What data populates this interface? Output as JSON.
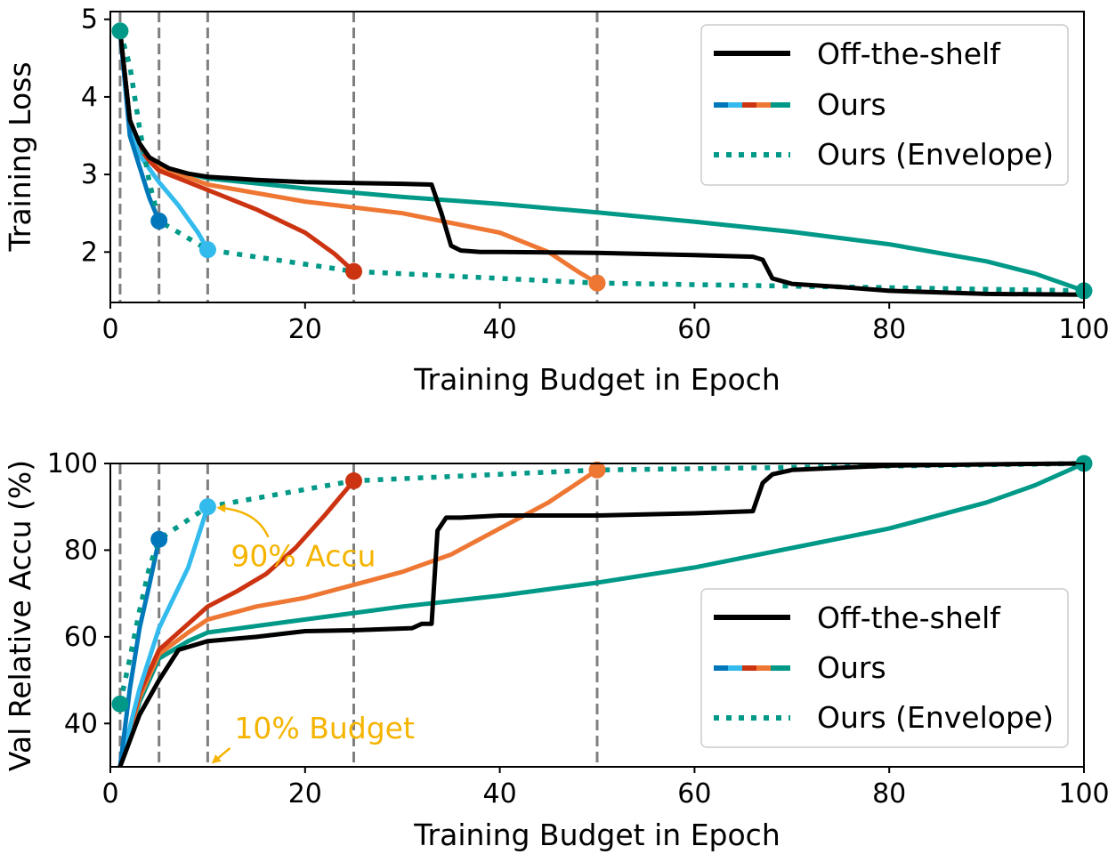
{
  "colors": {
    "off_the_shelf": "#000000",
    "b1": "#009988",
    "b5": "#0077bb",
    "b10": "#33bbee",
    "b25": "#cc3311",
    "b50": "#ee7733",
    "b100": "#009988",
    "envelope": "#009988",
    "annotation": "#f5b400",
    "vline": "#7f7f7f"
  },
  "legend": {
    "off_the_shelf": "Off-the-shelf",
    "ours": "Ours",
    "envelope": "Ours (Envelope)"
  },
  "chart_data": [
    {
      "type": "line",
      "xlabel": "Training Budget in Epoch",
      "ylabel": "Training Loss",
      "xlim": [
        0,
        100
      ],
      "ylim": [
        1.35,
        5.1
      ],
      "xticks": [
        "0",
        "20",
        "40",
        "60",
        "80",
        "100"
      ],
      "xtick_values": [
        0,
        20,
        40,
        60,
        80,
        100
      ],
      "yticks": [
        "2",
        "3",
        "4",
        "5"
      ],
      "ytick_values": [
        2,
        3,
        4,
        5
      ],
      "budget_lines": [
        1,
        5,
        10,
        25,
        50
      ],
      "legend_position": "top-right",
      "series": [
        {
          "key": "off_the_shelf",
          "color_key": "off_the_shelf",
          "style": "solid",
          "x": [
            1,
            2,
            3,
            4,
            5,
            6,
            8,
            10,
            15,
            20,
            25,
            30,
            33,
            34,
            35,
            36,
            38,
            40,
            50,
            60,
            66,
            67,
            68,
            70,
            75,
            80,
            90,
            100
          ],
          "y": [
            4.85,
            3.7,
            3.4,
            3.22,
            3.15,
            3.08,
            3.01,
            2.97,
            2.93,
            2.9,
            2.89,
            2.88,
            2.87,
            2.5,
            2.08,
            2.02,
            2.0,
            2.0,
            1.99,
            1.96,
            1.94,
            1.9,
            1.66,
            1.59,
            1.55,
            1.5,
            1.46,
            1.45
          ]
        },
        {
          "key": "ours_b100",
          "color_key": "b100",
          "style": "solid",
          "x": [
            1,
            2,
            3,
            5,
            10,
            20,
            30,
            40,
            50,
            60,
            70,
            80,
            90,
            95,
            100
          ],
          "y": [
            4.85,
            3.7,
            3.35,
            3.1,
            2.95,
            2.82,
            2.71,
            2.62,
            2.51,
            2.39,
            2.26,
            2.1,
            1.88,
            1.72,
            1.5
          ]
        },
        {
          "key": "ours_b50",
          "color_key": "b50",
          "style": "solid",
          "x": [
            1,
            2,
            3,
            5,
            10,
            20,
            30,
            40,
            45,
            48,
            50
          ],
          "y": [
            4.85,
            3.7,
            3.35,
            3.1,
            2.87,
            2.65,
            2.5,
            2.25,
            2.0,
            1.75,
            1.6
          ]
        },
        {
          "key": "ours_b25",
          "color_key": "b25",
          "style": "solid",
          "x": [
            1,
            2,
            3,
            5,
            8,
            10,
            15,
            20,
            23,
            25
          ],
          "y": [
            4.85,
            3.7,
            3.3,
            3.05,
            2.9,
            2.8,
            2.55,
            2.25,
            1.98,
            1.75
          ]
        },
        {
          "key": "ours_b10",
          "color_key": "b10",
          "style": "solid",
          "x": [
            1,
            2,
            3,
            5,
            7,
            9,
            10
          ],
          "y": [
            4.85,
            3.6,
            3.25,
            2.9,
            2.6,
            2.25,
            2.03
          ]
        },
        {
          "key": "ours_b5",
          "color_key": "b5",
          "style": "solid",
          "x": [
            1,
            2,
            3,
            4,
            5
          ],
          "y": [
            4.85,
            3.5,
            3.1,
            2.7,
            2.4
          ]
        },
        {
          "key": "envelope",
          "color_key": "envelope",
          "style": "dotted",
          "x": [
            1,
            2,
            3,
            4,
            5,
            10,
            25,
            50,
            100
          ],
          "y": [
            4.85,
            4.4,
            3.6,
            2.9,
            2.4,
            2.03,
            1.75,
            1.6,
            1.5
          ]
        }
      ],
      "markers": [
        {
          "x": 1,
          "y": 4.85,
          "color_key": "b1"
        },
        {
          "x": 5,
          "y": 2.4,
          "color_key": "b5"
        },
        {
          "x": 10,
          "y": 2.03,
          "color_key": "b10"
        },
        {
          "x": 25,
          "y": 1.75,
          "color_key": "b25"
        },
        {
          "x": 50,
          "y": 1.6,
          "color_key": "b50"
        },
        {
          "x": 100,
          "y": 1.5,
          "color_key": "b100"
        }
      ]
    },
    {
      "type": "line",
      "xlabel": "Training Budget in Epoch",
      "ylabel": "Val Relative Accu (%)",
      "xlim": [
        0,
        100
      ],
      "ylim": [
        30,
        100
      ],
      "xticks": [
        "0",
        "20",
        "40",
        "60",
        "80",
        "100"
      ],
      "xtick_values": [
        0,
        20,
        40,
        60,
        80,
        100
      ],
      "yticks": [
        "40",
        "60",
        "80",
        "100"
      ],
      "ytick_values": [
        40,
        60,
        80,
        100
      ],
      "budget_lines": [
        1,
        5,
        10,
        25,
        50
      ],
      "legend_position": "lower-right",
      "series": [
        {
          "key": "off_the_shelf",
          "color_key": "off_the_shelf",
          "style": "solid",
          "x": [
            1,
            3,
            5,
            7,
            10,
            15,
            20,
            25,
            31,
            32,
            33,
            33.6,
            34.5,
            36,
            40,
            50,
            60,
            66,
            67,
            68,
            70,
            80,
            90,
            100
          ],
          "y": [
            30,
            42,
            50,
            57,
            59,
            60,
            61.3,
            61.5,
            62,
            63,
            63,
            84.5,
            87.5,
            87.5,
            88,
            88,
            88.5,
            89,
            95.5,
            97.5,
            98.5,
            99.5,
            99.8,
            100
          ]
        },
        {
          "key": "ours_b100",
          "color_key": "b100",
          "style": "solid",
          "x": [
            1,
            3,
            5,
            8,
            10,
            20,
            30,
            40,
            50,
            60,
            70,
            80,
            90,
            95,
            100
          ],
          "y": [
            30,
            45,
            55,
            59,
            61,
            64,
            67,
            69.5,
            72.5,
            76,
            80.5,
            85,
            91,
            95,
            100
          ]
        },
        {
          "key": "ours_b50",
          "color_key": "b50",
          "style": "solid",
          "x": [
            1,
            3,
            5,
            8,
            10,
            15,
            20,
            25,
            30,
            35,
            40,
            45,
            50
          ],
          "y": [
            30,
            46,
            56,
            61,
            64,
            67,
            69,
            72,
            75,
            79,
            85,
            91,
            98.5
          ]
        },
        {
          "key": "ours_b25",
          "color_key": "b25",
          "style": "solid",
          "x": [
            1,
            3,
            5,
            8,
            10,
            13,
            16,
            19,
            22,
            25
          ],
          "y": [
            30,
            47,
            57,
            63,
            67,
            70.5,
            74.5,
            80.5,
            88,
            96
          ]
        },
        {
          "key": "ours_b10",
          "color_key": "b10",
          "style": "solid",
          "x": [
            1,
            3,
            5,
            8,
            10
          ],
          "y": [
            30,
            48,
            62,
            76,
            90
          ]
        },
        {
          "key": "ours_b5",
          "color_key": "b5",
          "style": "solid",
          "x": [
            1,
            2,
            3,
            4,
            5
          ],
          "y": [
            30,
            48,
            62,
            72,
            82.5
          ]
        },
        {
          "key": "envelope",
          "color_key": "envelope",
          "style": "dotted",
          "x": [
            1,
            2,
            3,
            4,
            5,
            10,
            25,
            50,
            100
          ],
          "y": [
            44.5,
            55,
            66,
            76,
            82.5,
            90,
            96,
            98.5,
            100
          ]
        }
      ],
      "markers": [
        {
          "x": 1,
          "y": 44.5,
          "color_key": "b1"
        },
        {
          "x": 5,
          "y": 82.5,
          "color_key": "b5"
        },
        {
          "x": 10,
          "y": 90,
          "color_key": "b10"
        },
        {
          "x": 25,
          "y": 96,
          "color_key": "b25"
        },
        {
          "x": 50,
          "y": 98.5,
          "color_key": "b50"
        },
        {
          "x": 100,
          "y": 100,
          "color_key": "b100"
        }
      ],
      "annotations": [
        {
          "text": "90% Accu",
          "target_x": 10,
          "target_y": 90
        },
        {
          "text": "10% Budget",
          "target_x": 10,
          "target_y": 30
        }
      ]
    }
  ]
}
